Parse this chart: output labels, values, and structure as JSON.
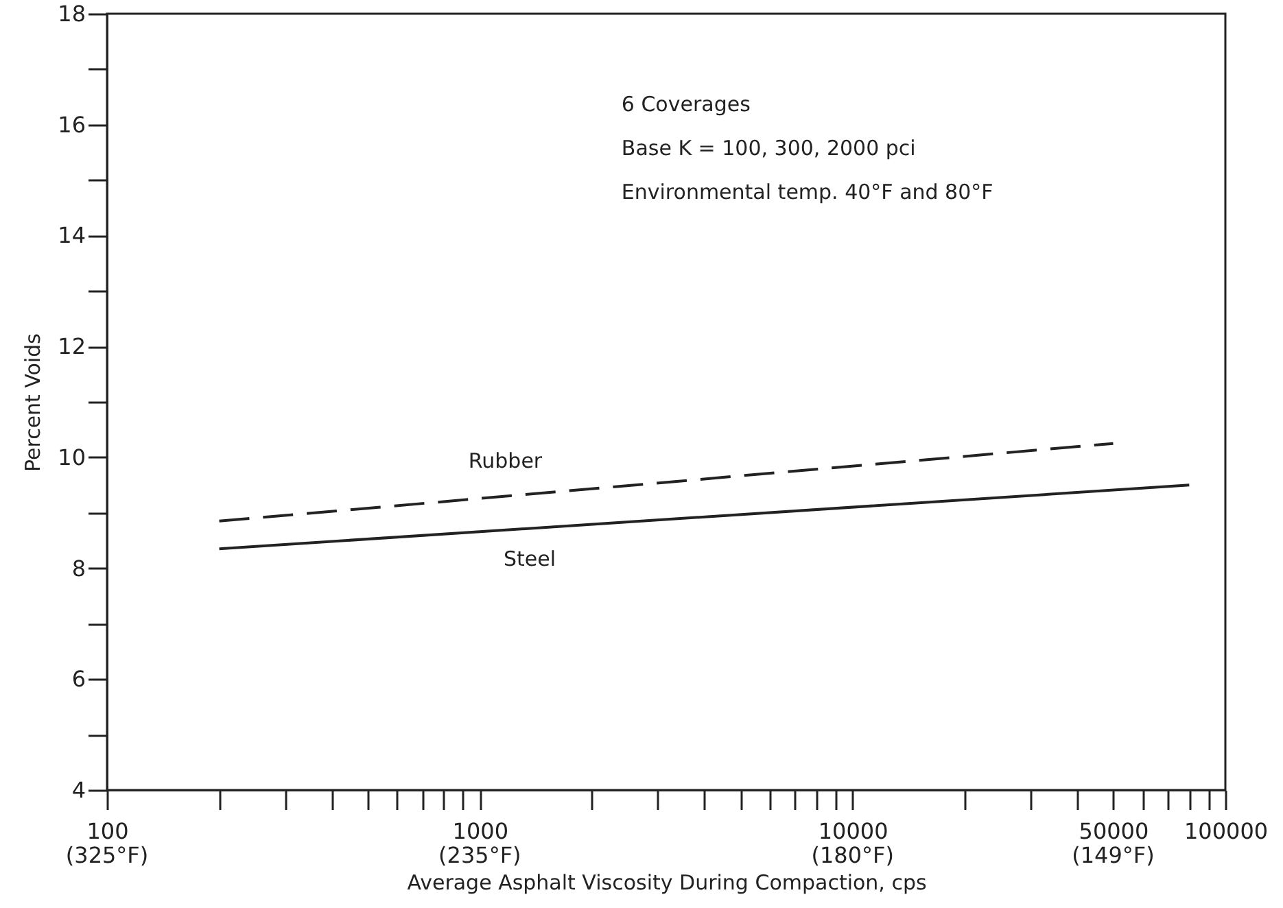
{
  "chart_data": {
    "type": "line",
    "xlabel": "Average Asphalt Viscosity During Compaction, cps",
    "ylabel": "Percent Voids",
    "log": "x",
    "xlim": [
      100,
      100000
    ],
    "xticks": [
      100,
      {
        "value": 200,
        "label": null
      },
      {
        "value": 300,
        "label": null
      },
      {
        "value": 400,
        "label": null
      },
      {
        "value": 500,
        "label": null
      },
      {
        "value": 600,
        "label": null
      },
      {
        "value": 700,
        "label": null
      },
      {
        "value": 800,
        "label": null
      },
      {
        "value": 900,
        "label": null
      },
      1000,
      {
        "value": 2000,
        "label": null
      },
      {
        "value": 3000,
        "label": null
      },
      {
        "value": 4000,
        "label": null
      },
      {
        "value": 5000,
        "label": null
      },
      {
        "value": 6000,
        "label": null
      },
      {
        "value": 7000,
        "label": null
      },
      {
        "value": 8000,
        "label": null
      },
      {
        "value": 9000,
        "label": null
      },
      10000,
      {
        "value": 20000,
        "label": null
      },
      {
        "value": 30000,
        "label": null
      },
      {
        "value": 40000,
        "label": null
      },
      50000,
      {
        "value": 60000,
        "label": null
      },
      {
        "value": 70000,
        "label": null
      },
      {
        "value": 80000,
        "label": null
      },
      {
        "value": 90000,
        "label": null
      },
      100000
    ],
    "ylim": [
      4,
      18
    ],
    "yticks": [
      4,
      {
        "value": 5,
        "label": null
      },
      6,
      {
        "value": 7,
        "label": null
      },
      8,
      {
        "value": 9,
        "label": null
      },
      10,
      {
        "value": 11,
        "label": null
      },
      12,
      {
        "value": 13,
        "label": null
      },
      14,
      {
        "value": 15,
        "label": null
      },
      16,
      {
        "value": 17,
        "label": null
      },
      18
    ],
    "grid": false,
    "marker": "none",
    "series": [
      {
        "name": "Rubber",
        "color": "#222222",
        "line_style": "dashed",
        "x": [
          200,
          50000
        ],
        "values": [
          8.85,
          10.25
        ]
      },
      {
        "name": "Steel",
        "color": "#222222",
        "line_style": "solid",
        "x": [
          200,
          80000
        ],
        "values": [
          8.35,
          9.5
        ]
      }
    ],
    "annotations": [
      "6 Coverages\nBase K = 100, 300, 2000 pci\nEnvironmental temp. 40°F and 80°F",
      "(325°F)",
      "(235°F)",
      "(180°F)",
      "(149°F)"
    ]
  }
}
